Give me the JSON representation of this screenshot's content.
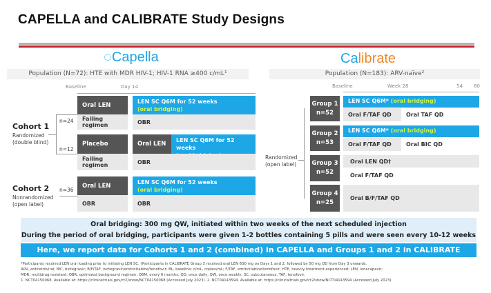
{
  "title": "CAPELLA and CALIBRATE Study Designs",
  "capella": {
    "logo": "Capella",
    "population": "Population (N=72): HTE with MDR HIV-1; HIV-1 RNA ≥400 c/mL¹",
    "ticks": [
      "Baseline",
      "Day 14"
    ],
    "cohort1": {
      "name": "Cohort 1",
      "sub1": "Randomized",
      "sub2": "(double blind)",
      "n_a": "n=24",
      "n_b": "n=12"
    },
    "cohort2": {
      "name": "Cohort 2",
      "sub1": "Nonrandomized",
      "sub2": "(open label)",
      "n": "n=36"
    },
    "oral_len": "Oral LEN",
    "placebo": "Placebo",
    "failing": "Failing regimen",
    "obr": "OBR",
    "len_sc": "LEN SC Q6M for 52 weeks",
    "bridging": "(oral bridging)"
  },
  "calibrate": {
    "logo_a": "Ca",
    "logo_b": "librate",
    "population": "Population (N=183): ARV-naïve²",
    "ticks": [
      "Baseline",
      "Week 28",
      "54",
      "80"
    ],
    "randomized": "Randomized",
    "open_label": "(open label)",
    "groups": [
      {
        "name": "Group 1",
        "n": "n=52",
        "sc": "LEN SC Q6M*",
        "bridge": "(oral bridging)",
        "a": "Oral F/TAF QD",
        "b": "Oral TAF QD"
      },
      {
        "name": "Group 2",
        "n": "n=53",
        "sc": "LEN SC Q6M*",
        "bridge": "(oral bridging)",
        "a": "Oral F/TAF QD",
        "b": "Oral BIC QD"
      },
      {
        "name": "Group 3",
        "n": "n=52",
        "a": "Oral LEN QD†",
        "b": "Oral F/TAF QD"
      },
      {
        "name": "Group 4",
        "n": "n=25",
        "a": "Oral B/F/TAF QD"
      }
    ]
  },
  "bridging": {
    "line1": "Oral bridging: 300 mg QW, initiated within two weeks of the next scheduled injection",
    "line2": "During the period of oral bridging, participants were given 1-2 bottles containing 5 pills and were seen every 10-12 weeks"
  },
  "banner": "Here, we report data for Cohorts 1 and 2 (combined) in CAPELLA and Groups 1 and 2 in CALIBRATE",
  "footnotes": [
    "*Participants received LEN oral loading prior to initiating LEN SC. †Participants in CALIBRATE Group 3 received oral LEN 600 mg on Days 1 and 2, followed by 50 mg QD from Day 3 onwards.",
    "ARV, antiretroviral; BIC, bictegravir; B/F/TAF, bictegravir/emtricitabine/tenofovir; BL, baseline; c/mL, copies/mL; F/TAF, emtricitabine/tenofovir; HTE, heavily treatment-experienced; LEN, lenacapavir;",
    "MDR, multidrug resistant; OBR, optimized background regimen; Q6M, every 6 months; QD, once daily; QW, once weekly; SC, subcutaneous, TAF, tenofovir.",
    "1. NCT04150068. Available at: https://clinicaltrials.gov/ct2/show/NCT04150068 (Accessed July 2023). 2. NCT04143594. Available at: https://clinicaltrials.gov/ct2/show/NCT04143594 (Accessed July 2023)."
  ]
}
